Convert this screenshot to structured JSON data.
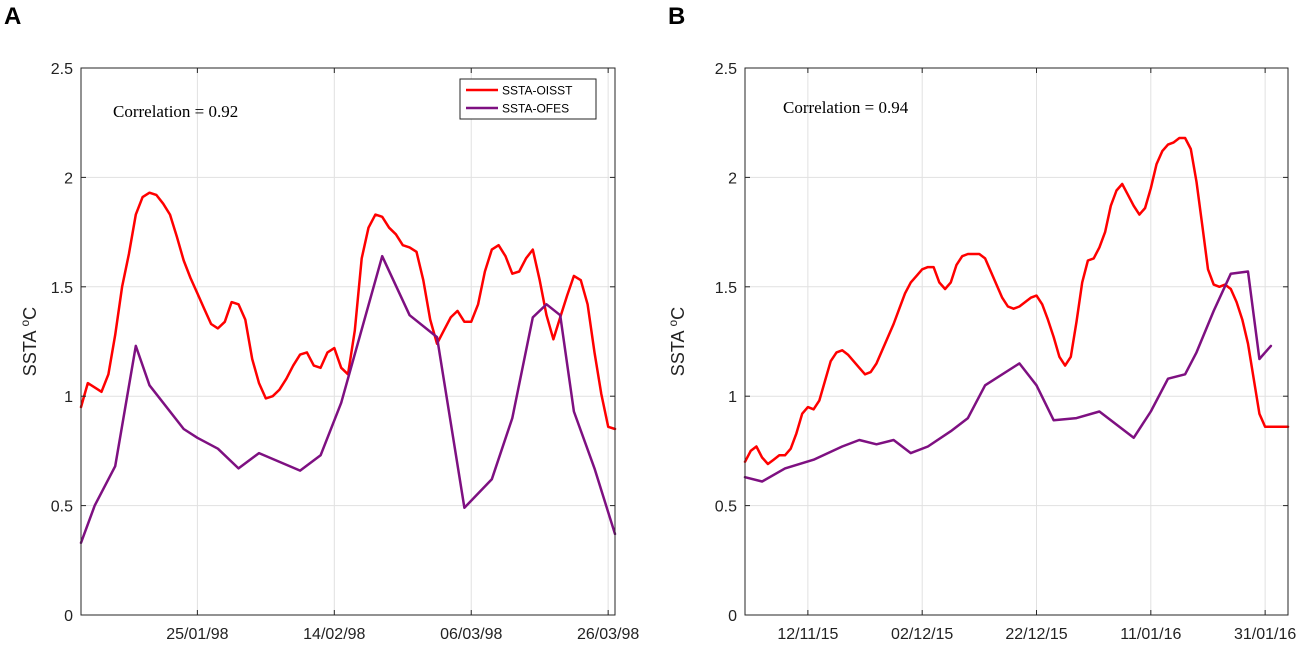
{
  "chart_data": [
    {
      "type": "line",
      "panel": "A",
      "ylabel": "SSTA",
      "ylabel_unit": "oC",
      "annotation": "Correlation = 0.92",
      "ylim": [
        0,
        2.5
      ],
      "yticks": [
        0,
        0.5,
        1,
        1.5,
        2,
        2.5
      ],
      "ytick_labels": [
        "0",
        "0.5",
        "1",
        "1.5",
        "2",
        "2.5"
      ],
      "xlim": [
        0,
        78
      ],
      "xticks": [
        17,
        37,
        57,
        77
      ],
      "xtick_labels": [
        "25/01/98",
        "14/02/98",
        "06/03/98",
        "26/03/98"
      ],
      "legend": {
        "position": "top-right"
      },
      "series": [
        {
          "name": "SSTA-OISST",
          "color": "#ff0000",
          "x": [
            0,
            1,
            2,
            3,
            4,
            5,
            6,
            7,
            8,
            9,
            10,
            11,
            12,
            13,
            14,
            15,
            16,
            17,
            18,
            19,
            20,
            21,
            22,
            23,
            24,
            25,
            26,
            27,
            28,
            29,
            30,
            31,
            32,
            33,
            34,
            35,
            36,
            37,
            38,
            39,
            40,
            41,
            42,
            43,
            44,
            45,
            46,
            47,
            48,
            49,
            50,
            51,
            52,
            53,
            54,
            55,
            56,
            57,
            58,
            59,
            60,
            61,
            62,
            63,
            64,
            65,
            66,
            67,
            68,
            69,
            70,
            71,
            72,
            73,
            74,
            75,
            76,
            77,
            78
          ],
          "y": [
            0.95,
            1.06,
            1.04,
            1.02,
            1.1,
            1.28,
            1.5,
            1.65,
            1.83,
            1.91,
            1.93,
            1.92,
            1.88,
            1.83,
            1.73,
            1.62,
            1.54,
            1.47,
            1.4,
            1.33,
            1.31,
            1.34,
            1.43,
            1.42,
            1.35,
            1.17,
            1.06,
            0.99,
            1.0,
            1.03,
            1.08,
            1.14,
            1.19,
            1.2,
            1.14,
            1.13,
            1.2,
            1.22,
            1.13,
            1.1,
            1.3,
            1.63,
            1.77,
            1.83,
            1.82,
            1.77,
            1.74,
            1.69,
            1.68,
            1.66,
            1.53,
            1.35,
            1.24,
            1.3,
            1.36,
            1.39,
            1.34,
            1.34,
            1.42,
            1.57,
            1.67,
            1.69,
            1.64,
            1.56,
            1.57,
            1.63,
            1.67,
            1.53,
            1.37,
            1.26,
            1.36,
            1.46,
            1.55,
            1.53,
            1.42,
            1.2,
            1.01,
            0.86,
            0.85
          ]
        },
        {
          "name": "SSTA-OFES",
          "color": "#7e1081",
          "x": [
            0,
            2,
            5,
            8,
            10,
            15,
            17,
            20,
            23,
            26,
            32,
            35,
            38,
            44,
            48,
            52,
            56,
            60,
            63,
            66,
            68,
            70,
            72,
            75,
            78
          ],
          "y": [
            0.33,
            0.5,
            0.68,
            1.23,
            1.05,
            0.85,
            0.81,
            0.76,
            0.67,
            0.74,
            0.66,
            0.73,
            0.97,
            1.64,
            1.37,
            1.27,
            0.49,
            0.62,
            0.9,
            1.36,
            1.42,
            1.37,
            0.93,
            0.67,
            0.37
          ]
        }
      ]
    },
    {
      "type": "line",
      "panel": "B",
      "ylabel": "SSTA",
      "ylabel_unit": "oC",
      "annotation": "Correlation = 0.94",
      "ylim": [
        0,
        2.5
      ],
      "yticks": [
        0,
        0.5,
        1,
        1.5,
        2,
        2.5
      ],
      "ytick_labels": [
        "0",
        "0.5",
        "1",
        "1.5",
        "2",
        "2.5"
      ],
      "xlim": [
        0,
        95
      ],
      "xticks": [
        11,
        31,
        51,
        71,
        91
      ],
      "xtick_labels": [
        "12/11/15",
        "02/12/15",
        "22/12/15",
        "11/01/16",
        "31/01/16"
      ],
      "series": [
        {
          "name": "SSTA-OISST",
          "color": "#ff0000",
          "x": [
            0,
            1,
            2,
            3,
            4,
            5,
            6,
            7,
            8,
            9,
            10,
            11,
            12,
            13,
            14,
            15,
            16,
            17,
            18,
            19,
            20,
            21,
            22,
            23,
            24,
            25,
            26,
            27,
            28,
            29,
            30,
            31,
            32,
            33,
            34,
            35,
            36,
            37,
            38,
            39,
            40,
            41,
            42,
            43,
            44,
            45,
            46,
            47,
            48,
            49,
            50,
            51,
            52,
            53,
            54,
            55,
            56,
            57,
            58,
            59,
            60,
            61,
            62,
            63,
            64,
            65,
            66,
            67,
            68,
            69,
            70,
            71,
            72,
            73,
            74,
            75,
            76,
            77,
            78,
            79,
            80,
            81,
            82,
            83,
            84,
            85,
            86,
            87,
            88,
            89,
            90,
            91,
            92,
            93,
            94,
            95
          ],
          "y": [
            0.7,
            0.75,
            0.77,
            0.72,
            0.69,
            0.71,
            0.73,
            0.73,
            0.76,
            0.83,
            0.92,
            0.95,
            0.94,
            0.98,
            1.07,
            1.16,
            1.2,
            1.21,
            1.19,
            1.16,
            1.13,
            1.1,
            1.11,
            1.15,
            1.21,
            1.27,
            1.33,
            1.4,
            1.47,
            1.52,
            1.55,
            1.58,
            1.59,
            1.59,
            1.52,
            1.49,
            1.52,
            1.6,
            1.64,
            1.65,
            1.65,
            1.65,
            1.63,
            1.57,
            1.51,
            1.45,
            1.41,
            1.4,
            1.41,
            1.43,
            1.45,
            1.46,
            1.42,
            1.35,
            1.27,
            1.18,
            1.14,
            1.18,
            1.34,
            1.52,
            1.62,
            1.63,
            1.68,
            1.75,
            1.87,
            1.94,
            1.97,
            1.92,
            1.87,
            1.83,
            1.86,
            1.95,
            2.06,
            2.12,
            2.15,
            2.16,
            2.18,
            2.18,
            2.13,
            1.98,
            1.78,
            1.58,
            1.51,
            1.5,
            1.51,
            1.49,
            1.43,
            1.35,
            1.24,
            1.08,
            0.92,
            0.86,
            0.86,
            0.86,
            0.86,
            0.86
          ]
        },
        {
          "name": "SSTA-OFES",
          "color": "#7e1081",
          "x": [
            0,
            3,
            7,
            12,
            17,
            20,
            23,
            26,
            29,
            32,
            36,
            39,
            42,
            48,
            51,
            54,
            58,
            62,
            68,
            71,
            74,
            77,
            79,
            82,
            85,
            88,
            90,
            92
          ],
          "y": [
            0.63,
            0.61,
            0.67,
            0.71,
            0.77,
            0.8,
            0.78,
            0.8,
            0.74,
            0.77,
            0.84,
            0.9,
            1.05,
            1.15,
            1.05,
            0.89,
            0.9,
            0.93,
            0.81,
            0.93,
            1.08,
            1.1,
            1.2,
            1.39,
            1.56,
            1.57,
            1.17,
            1.23
          ]
        }
      ]
    }
  ]
}
